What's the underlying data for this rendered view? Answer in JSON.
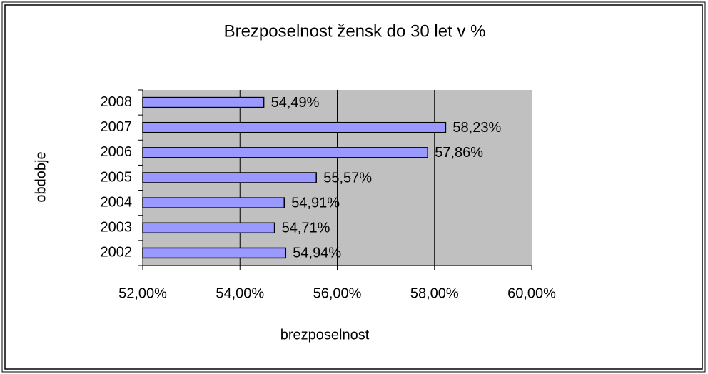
{
  "chart_data": {
    "type": "bar",
    "orientation": "horizontal",
    "title": "Brezposelnost žensk do 30 let v %",
    "x_label": "brezposelnost",
    "y_label": "obdobje",
    "categories": [
      "2002",
      "2003",
      "2004",
      "2005",
      "2006",
      "2007",
      "2008"
    ],
    "values": [
      54.94,
      54.71,
      54.91,
      55.57,
      57.86,
      58.23,
      54.49
    ],
    "value_labels": [
      "54,94%",
      "54,71%",
      "54,91%",
      "55,57%",
      "57,86%",
      "58,23%",
      "54,49%"
    ],
    "color": "#9999ff",
    "xlim": [
      52,
      60
    ],
    "xticks": [
      {
        "value": 52,
        "label": "52,00%"
      },
      {
        "value": 54,
        "label": "54,00%"
      },
      {
        "value": 56,
        "label": "56,00%"
      },
      {
        "value": 58,
        "label": "58,00%"
      },
      {
        "value": 60,
        "label": "60,00%"
      }
    ],
    "grid": true
  }
}
